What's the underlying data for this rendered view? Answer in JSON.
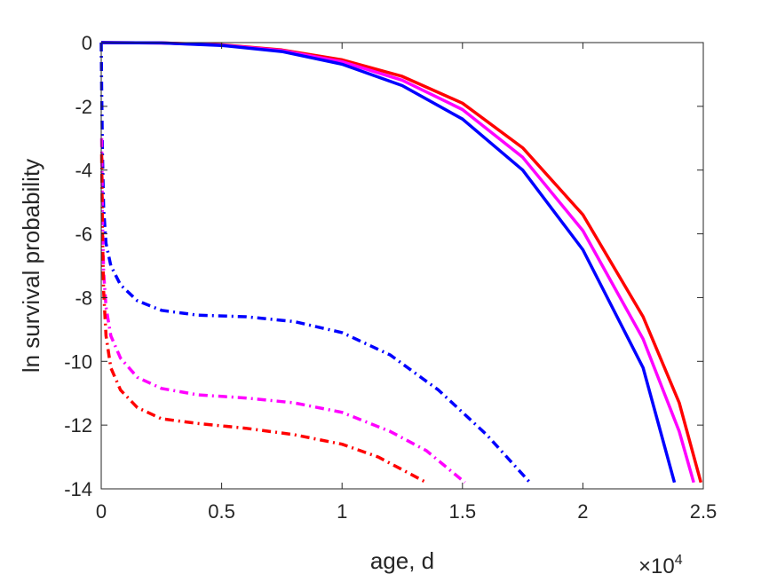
{
  "chart_data": {
    "type": "line",
    "title": "",
    "xlabel": "age, d",
    "ylabel": "ln survival probability",
    "x_multiplier": {
      "base": "×10",
      "exponent": "4"
    },
    "xlim": [
      0,
      2.5
    ],
    "ylim": [
      -14,
      0
    ],
    "x_ticks": [
      0,
      0.5,
      1,
      1.5,
      2,
      2.5
    ],
    "x_tick_labels": [
      "0",
      "0.5",
      "1",
      "1.5",
      "2",
      "2.5"
    ],
    "y_ticks": [
      0,
      -2,
      -4,
      -6,
      -8,
      -10,
      -12,
      -14
    ],
    "y_tick_labels": [
      "0",
      "-2",
      "-4",
      "-6",
      "-8",
      "-10",
      "-12",
      "-14"
    ],
    "grid": false,
    "legend": "none",
    "series": [
      {
        "color": "#ff0000",
        "dash": "solid",
        "x": [
          0,
          0.25,
          0.5,
          0.75,
          1.0,
          1.25,
          1.5,
          1.75,
          2.0,
          2.25,
          2.4,
          2.49
        ],
        "y": [
          0,
          -0.01,
          -0.07,
          -0.23,
          -0.54,
          -1.06,
          -1.9,
          -3.3,
          -5.4,
          -8.6,
          -11.3,
          -13.8
        ]
      },
      {
        "color": "#ff00ff",
        "dash": "solid",
        "x": [
          0,
          0.25,
          0.5,
          0.75,
          1.0,
          1.25,
          1.5,
          1.75,
          2.0,
          2.25,
          2.4,
          2.46
        ],
        "y": [
          0,
          -0.01,
          -0.08,
          -0.25,
          -0.6,
          -1.18,
          -2.1,
          -3.6,
          -5.9,
          -9.3,
          -12.2,
          -13.8
        ]
      },
      {
        "color": "#0000ff",
        "dash": "solid",
        "x": [
          0,
          0.25,
          0.5,
          0.75,
          1.0,
          1.25,
          1.5,
          1.75,
          2.0,
          2.25,
          2.38
        ],
        "y": [
          0,
          -0.01,
          -0.09,
          -0.28,
          -0.68,
          -1.35,
          -2.4,
          -4.0,
          -6.5,
          -10.2,
          -13.8
        ]
      },
      {
        "color": "#0000ff",
        "dash": "dashdot",
        "x": [
          0,
          0.002,
          0.005,
          0.01,
          0.02,
          0.04,
          0.08,
          0.15,
          0.25,
          0.4,
          0.6,
          0.8,
          1.0,
          1.2,
          1.4,
          1.6,
          1.78
        ],
        "y": [
          0,
          -1.5,
          -3.5,
          -5.2,
          -6.3,
          -7.0,
          -7.6,
          -8.1,
          -8.4,
          -8.55,
          -8.6,
          -8.75,
          -9.1,
          -9.8,
          -10.9,
          -12.3,
          -13.8
        ]
      },
      {
        "color": "#ff00ff",
        "dash": "dashdot",
        "x": [
          0.002,
          0.005,
          0.01,
          0.02,
          0.04,
          0.08,
          0.15,
          0.25,
          0.4,
          0.6,
          0.8,
          1.0,
          1.2,
          1.35,
          1.51
        ],
        "y": [
          -3.0,
          -5.5,
          -7.2,
          -8.3,
          -9.2,
          -9.9,
          -10.5,
          -10.85,
          -11.05,
          -11.15,
          -11.3,
          -11.6,
          -12.2,
          -12.8,
          -13.8
        ]
      },
      {
        "color": "#ff0000",
        "dash": "dashdot",
        "x": [
          0.002,
          0.005,
          0.01,
          0.02,
          0.04,
          0.08,
          0.15,
          0.25,
          0.4,
          0.6,
          0.8,
          1.0,
          1.15,
          1.35
        ],
        "y": [
          -3.5,
          -6.0,
          -7.8,
          -9.2,
          -10.2,
          -10.9,
          -11.45,
          -11.8,
          -11.95,
          -12.1,
          -12.3,
          -12.6,
          -13.0,
          -13.8
        ]
      }
    ]
  }
}
